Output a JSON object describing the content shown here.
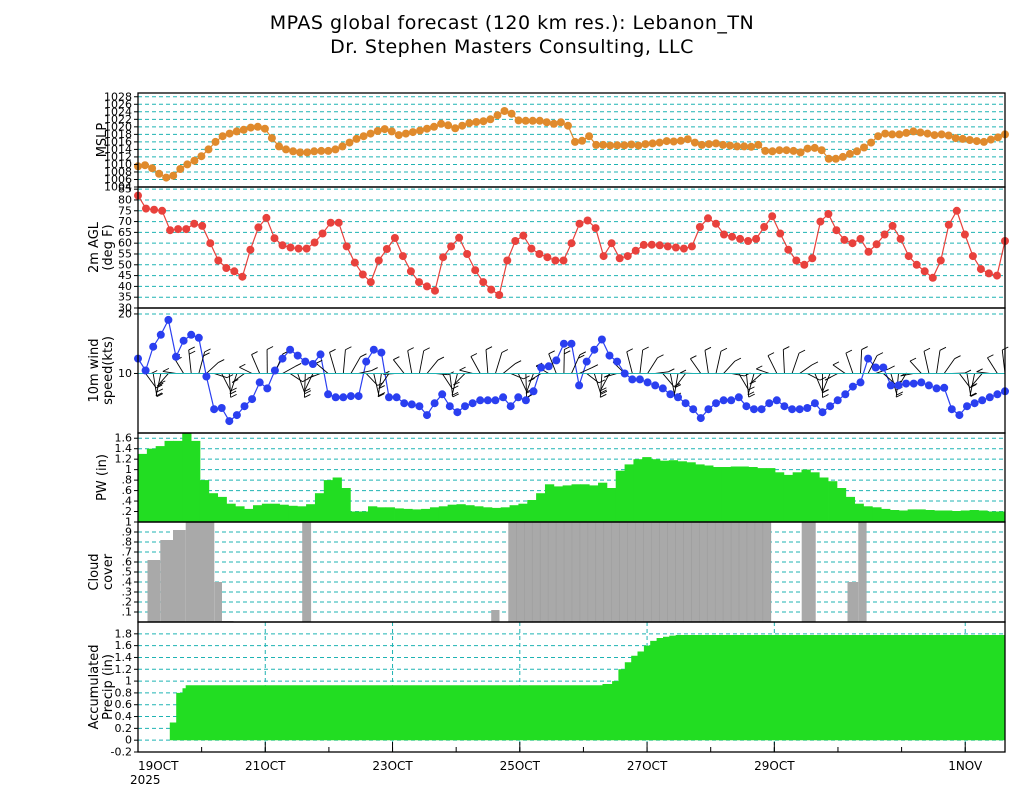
{
  "header": {
    "title_line1": "MPAS global forecast (120 km res.): Lebanon_TN",
    "title_line2": "Dr. Stephen Masters Consulting, LLC"
  },
  "chart_data": {
    "type": "meteogram",
    "x_axis": {
      "start_label": "19OCT",
      "year_label": "2025",
      "tick_labels": [
        "19OCT",
        "21OCT",
        "23OCT",
        "25OCT",
        "27OCT",
        "29OCT",
        "1NOV"
      ],
      "tick_days": [
        0,
        2,
        4,
        6,
        8,
        10,
        13
      ],
      "total_days": 13.625
    },
    "colors": {
      "mslp": "#e08a2c",
      "temp": "#e8413c",
      "wind": "#2a3ff0",
      "barb": "#000000",
      "pw": "#22dd22",
      "cloud": "#a9a9a9",
      "precip": "#22dd22",
      "grid": "#1fb3b3"
    },
    "panels": [
      {
        "id": "mslp",
        "type": "line",
        "ylabel": "MSLP",
        "ylim": [
          1004,
          1029
        ],
        "ticks": [
          1004,
          1006,
          1008,
          1010,
          1012,
          1014,
          1016,
          1018,
          1020,
          1022,
          1024,
          1026,
          1028
        ],
        "values": [
          1009.5,
          1009.8,
          1009,
          1007.5,
          1006.5,
          1007,
          1008.8,
          1010,
          1011,
          1012.2,
          1014,
          1016,
          1017.5,
          1018.2,
          1018.8,
          1019.2,
          1019.8,
          1020,
          1019.5,
          1017,
          1014.8,
          1014,
          1013.5,
          1013.2,
          1013.2,
          1013.5,
          1013.6,
          1013.6,
          1014,
          1014.8,
          1015.8,
          1016.8,
          1017.5,
          1018.2,
          1018.9,
          1019.4,
          1018.8,
          1017.8,
          1018.2,
          1018.6,
          1019,
          1019.5,
          1020,
          1020.8,
          1020.4,
          1019.6,
          1020.3,
          1021,
          1021.3,
          1021.5,
          1022,
          1023.1,
          1024.2,
          1023.5,
          1021.7,
          1021.6,
          1021.6,
          1021.6,
          1021.2,
          1020.8,
          1021.2,
          1020.3,
          1016,
          1016.3,
          1017.5,
          1015.2,
          1015.2,
          1015,
          1015.1,
          1015.1,
          1015.3,
          1015,
          1015.4,
          1015.6,
          1015.8,
          1016.2,
          1016.1,
          1016.3,
          1016.7,
          1015.8,
          1015.2,
          1015.4,
          1015.6,
          1015.2,
          1015,
          1014.8,
          1014.8,
          1014.7,
          1015.2,
          1013.6,
          1013.5,
          1013.8,
          1013.8,
          1013.6,
          1013.2,
          1014.2,
          1014.4,
          1013.8,
          1011.5,
          1011.5,
          1012,
          1012.8,
          1013.5,
          1014.5,
          1015.8,
          1017.5,
          1018.2,
          1018,
          1018,
          1018.4,
          1018.8,
          1018.5,
          1018.2,
          1017.8,
          1018,
          1017.7,
          1017,
          1016.8,
          1016.5,
          1016.2,
          1016,
          1016.6,
          1017.2,
          1018
        ]
      },
      {
        "id": "temp",
        "type": "line",
        "ylabel": "2m AGL",
        "ylabel2": "(deg F)",
        "ylim": [
          30,
          86
        ],
        "ticks": [
          30,
          35,
          40,
          45,
          50,
          55,
          60,
          65,
          70,
          75,
          80,
          85
        ],
        "values": [
          82,
          76,
          75.5,
          75,
          66,
          66.5,
          66.5,
          69,
          68,
          60,
          52,
          48.5,
          47,
          44.5,
          57,
          67.3,
          71.7,
          62.3,
          59,
          58,
          57.5,
          57.5,
          60.3,
          64.5,
          69.5,
          69.5,
          58.5,
          51,
          45.5,
          42,
          52,
          57.3,
          62.4,
          54,
          47,
          42,
          40,
          38,
          53.5,
          58.5,
          62.5,
          55,
          47.5,
          42,
          38.5,
          36,
          52,
          61,
          63.5,
          57.5,
          55,
          53.5,
          52,
          52,
          60,
          69,
          70.5,
          67,
          54,
          60,
          53,
          54,
          56.5,
          59.2,
          59.3,
          59,
          58.5,
          58,
          57.5,
          58.5,
          67.5,
          71.5,
          69,
          64,
          63,
          62,
          61,
          62,
          67.5,
          72.5,
          64.5,
          57,
          52,
          50,
          53,
          70,
          73.5,
          66,
          61.5,
          60,
          62,
          56,
          59.5,
          64,
          68,
          62,
          54,
          50,
          47,
          44,
          52,
          68.5,
          75,
          64,
          54,
          48,
          46,
          45,
          61
        ]
      },
      {
        "id": "wind",
        "type": "line",
        "ylabel": "10m wind",
        "ylabel2": "speed(kts)",
        "ylim": [
          0,
          21
        ],
        "ticks": [
          10,
          20
        ],
        "values": [
          12.5,
          10.5,
          14.5,
          16.5,
          19,
          12.8,
          15.5,
          16.5,
          16,
          9.5,
          4,
          4.2,
          2,
          3,
          4.5,
          5.7,
          8.5,
          7.5,
          10.5,
          12.5,
          14,
          13,
          12,
          11.6,
          13.2,
          6.5,
          6,
          6,
          6.2,
          6.2,
          12,
          14,
          13.5,
          6,
          6,
          5,
          4.8,
          4.5,
          3,
          5,
          6.5,
          4.5,
          3.5,
          4.5,
          5,
          5.5,
          5.5,
          5.5,
          6,
          4.5,
          6,
          5.5,
          7,
          11,
          11.2,
          12.2,
          15,
          15,
          8,
          12,
          14,
          15.7,
          13,
          12,
          10,
          9,
          9,
          8.5,
          8,
          7.5,
          6.5,
          6,
          5,
          4,
          2.5,
          4,
          5,
          5.5,
          5.5,
          6,
          4.5,
          4,
          4,
          5,
          5.5,
          4.5,
          4,
          4,
          4.2,
          5,
          3.5,
          4.5,
          5.5,
          6.5,
          7.8,
          8.5,
          12.5,
          11,
          11,
          8,
          8,
          8.3,
          8.3,
          8.5,
          8,
          7.5,
          7.6,
          4,
          3,
          4.5,
          5,
          5.5,
          6,
          6.5,
          7
        ]
      },
      {
        "id": "pw",
        "type": "bar",
        "ylabel": "PW (in)",
        "ylim": [
          0,
          1.7
        ],
        "ticks": [
          0.2,
          0.4,
          0.6,
          0.8,
          1,
          1.2,
          1.4,
          1.6
        ],
        "tick_labels": [
          ".2",
          ".4",
          ".6",
          ".8",
          "1",
          "1.2",
          "1.4",
          "1.6"
        ],
        "values": [
          1.3,
          1.4,
          1.45,
          1.55,
          1.55,
          1.7,
          1.55,
          0.8,
          0.55,
          0.48,
          0.35,
          0.3,
          0.25,
          0.32,
          0.35,
          0.35,
          0.33,
          0.31,
          0.3,
          0.34,
          0.55,
          0.8,
          0.85,
          0.65,
          0.2,
          0.2,
          0.3,
          0.28,
          0.28,
          0.26,
          0.25,
          0.24,
          0.25,
          0.28,
          0.3,
          0.33,
          0.34,
          0.32,
          0.3,
          0.28,
          0.27,
          0.28,
          0.32,
          0.35,
          0.42,
          0.55,
          0.72,
          0.68,
          0.7,
          0.72,
          0.72,
          0.7,
          0.75,
          0.65,
          0.98,
          1.1,
          1.2,
          1.24,
          1.2,
          1.17,
          1.18,
          1.16,
          1.14,
          1.1,
          1.08,
          1.05,
          1.05,
          1.06,
          1.06,
          1.05,
          1.03,
          1.03,
          0.95,
          0.9,
          0.95,
          1.0,
          0.95,
          0.85,
          0.78,
          0.65,
          0.48,
          0.35,
          0.3,
          0.28,
          0.25,
          0.23,
          0.22,
          0.24,
          0.24,
          0.23,
          0.22,
          0.22,
          0.21,
          0.22,
          0.23,
          0.22,
          0.2,
          0.2
        ]
      },
      {
        "id": "cloud",
        "type": "bar",
        "ylabel": "Cloud",
        "ylabel2": "cover",
        "ylim": [
          0,
          1
        ],
        "ticks": [
          0.1,
          0.2,
          0.3,
          0.4,
          0.5,
          0.6,
          0.7,
          0.8,
          0.9,
          1
        ],
        "tick_labels": [
          ".1",
          ".2",
          ".3",
          ".4",
          ".5",
          ".6",
          ".7",
          ".8",
          ".9",
          "1"
        ],
        "segments": [
          {
            "start": 0.15,
            "end": 0.35,
            "value": 0.62
          },
          {
            "start": 0.35,
            "end": 0.55,
            "value": 0.82
          },
          {
            "start": 0.55,
            "end": 0.75,
            "value": 0.92
          },
          {
            "start": 0.75,
            "end": 1.2,
            "value": 1.0
          },
          {
            "start": 1.2,
            "end": 1.32,
            "value": 0.4
          },
          {
            "start": 1.32,
            "end": 1.5,
            "value": 0.01
          },
          {
            "start": 2.58,
            "end": 2.72,
            "value": 1.0
          },
          {
            "start": 5.55,
            "end": 5.68,
            "value": 0.12
          },
          {
            "start": 5.82,
            "end": 9.95,
            "value": 1.0
          },
          {
            "start": 10.43,
            "end": 10.65,
            "value": 1.0
          },
          {
            "start": 11.15,
            "end": 11.32,
            "value": 0.4
          },
          {
            "start": 11.32,
            "end": 11.45,
            "value": 1.0
          }
        ]
      },
      {
        "id": "precip",
        "type": "area",
        "ylabel": "Accumulated",
        "ylabel2": "Precip (in)",
        "ylim": [
          -0.2,
          2.0
        ],
        "ticks": [
          -0.2,
          0,
          0.2,
          0.4,
          0.6,
          0.8,
          1,
          1.2,
          1.4,
          1.6,
          1.8
        ],
        "tick_labels": [
          "-0.2",
          "0",
          "0.2",
          "0.4",
          "0.6",
          "0.8",
          "1",
          "1.2",
          "1.4",
          "1.6",
          "1.8"
        ],
        "steps": [
          [
            0,
            0
          ],
          [
            0.45,
            0
          ],
          [
            0.5,
            0.3
          ],
          [
            0.6,
            0.8
          ],
          [
            0.7,
            0.88
          ],
          [
            0.75,
            0.93
          ],
          [
            7.15,
            0.93
          ],
          [
            7.3,
            0.95
          ],
          [
            7.45,
            1.0
          ],
          [
            7.55,
            1.2
          ],
          [
            7.65,
            1.32
          ],
          [
            7.75,
            1.43
          ],
          [
            7.85,
            1.5
          ],
          [
            7.95,
            1.6
          ],
          [
            8.05,
            1.68
          ],
          [
            8.15,
            1.73
          ],
          [
            8.25,
            1.75
          ],
          [
            8.35,
            1.77
          ],
          [
            8.45,
            1.78
          ],
          [
            13.625,
            1.78
          ]
        ]
      }
    ]
  }
}
